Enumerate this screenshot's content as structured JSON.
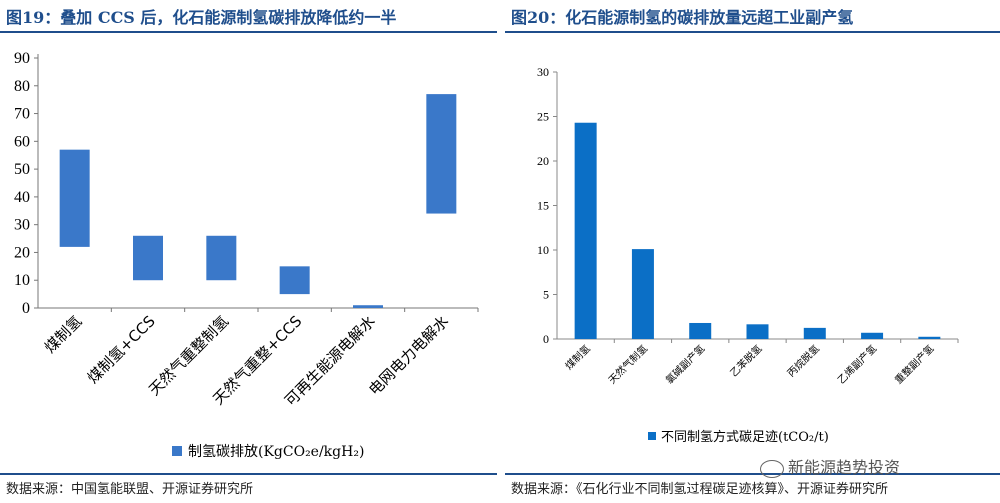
{
  "left": {
    "title": "图19：叠加 CCS 后，化石能源制氢碳排放降低约一半",
    "source": "数据来源：中国氢能联盟、开源证券研究所"
  },
  "right": {
    "title": "图20：化石能源制氢的碳排放量远超工业副产氢",
    "source": "数据来源：《石化行业不同制氢过程碳足迹核算》、开源证券研究所"
  },
  "watermark": "新能源趋势投资",
  "colors": {
    "accent": "#1f4e8c",
    "bar_left": "#3a78c9",
    "bar_right": "#0b6fc6"
  },
  "chart_data": [
    {
      "type": "bar",
      "subtype": "floating-range",
      "categories": [
        "煤制氢",
        "煤制氢+CCS",
        "天然气重整制氢",
        "天然气重整+CCS",
        "可再生能源电解水",
        "电网电力电解水"
      ],
      "ranges": [
        [
          22,
          57
        ],
        [
          10,
          26
        ],
        [
          10,
          26
        ],
        [
          5,
          15
        ],
        [
          0,
          1
        ],
        [
          34,
          77
        ]
      ],
      "ylim": [
        0,
        90
      ],
      "yticks": [
        0,
        10,
        20,
        30,
        40,
        50,
        60,
        70,
        80,
        90
      ],
      "legend": "制氢碳排放(KgCO₂e/kgH₂)",
      "legend_position": "bottom",
      "grid": false
    },
    {
      "type": "bar",
      "categories": [
        "煤制氢",
        "天然气制氢",
        "氯碱副产氢",
        "乙苯脱氢",
        "丙烷脱氢",
        "乙烯副产氢",
        "重整副产氢"
      ],
      "values": [
        24.3,
        10.1,
        1.8,
        1.65,
        1.25,
        0.7,
        0.25
      ],
      "ylim": [
        0,
        30
      ],
      "yticks": [
        0,
        5,
        10,
        15,
        20,
        25,
        30
      ],
      "legend": "不同制氢方式碳足迹(tCO₂/t)",
      "legend_position": "bottom",
      "grid": false
    }
  ]
}
